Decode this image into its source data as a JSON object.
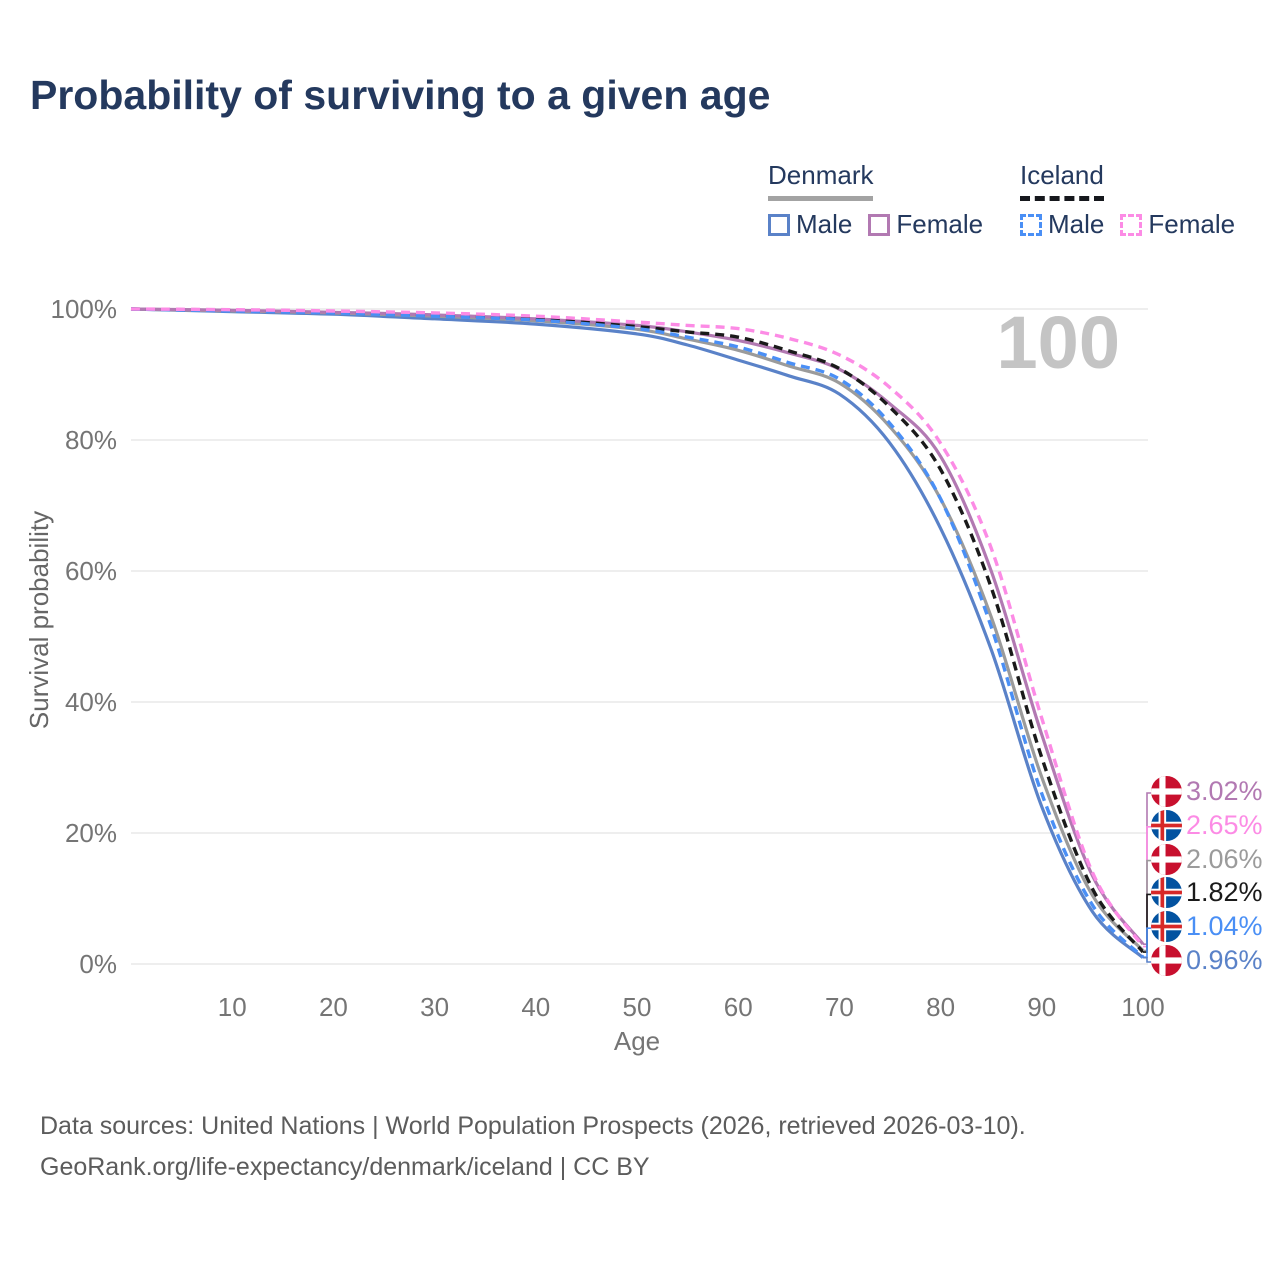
{
  "title": "Probability of surviving to a given age",
  "watermark": "100",
  "legend": {
    "groups": [
      {
        "name": "Denmark",
        "line_style": "solid",
        "underline_color": "#a3a3a3",
        "items": [
          {
            "label": "Male",
            "color": "#5a82c8"
          },
          {
            "label": "Female",
            "color": "#b279b2"
          }
        ]
      },
      {
        "name": "Iceland",
        "line_style": "dashed",
        "underline_color": "#16181d",
        "items": [
          {
            "label": "Male",
            "color": "#4a8ff5"
          },
          {
            "label": "Female",
            "color": "#fc8be5"
          }
        ]
      }
    ]
  },
  "chart_data": {
    "type": "line",
    "title": "Probability of surviving to a given age",
    "xlabel": "Age",
    "ylabel": "Survival probability",
    "xlim": [
      0,
      100
    ],
    "ylim": [
      0,
      100
    ],
    "grid": "horizontal",
    "x_tick_labels": [
      "10",
      "20",
      "30",
      "40",
      "50",
      "60",
      "70",
      "80",
      "90",
      "100"
    ],
    "x_tick_values": [
      10,
      20,
      30,
      40,
      50,
      60,
      70,
      80,
      90,
      100
    ],
    "y_tick_labels": [
      "100%",
      "80%",
      "60%",
      "40%",
      "20%",
      "0%"
    ],
    "y_tick_values": [
      100,
      80,
      60,
      40,
      20,
      0
    ],
    "legend_position": "top-right",
    "x": [
      0,
      10,
      20,
      30,
      40,
      50,
      55,
      60,
      65,
      70,
      75,
      80,
      85,
      90,
      95,
      100
    ],
    "series": [
      {
        "name": "Denmark Female",
        "country": "denmark",
        "sex": "female",
        "color": "#b279b2",
        "dashed": false,
        "end_label": "3.02%",
        "values": [
          100,
          99.8,
          99.5,
          99.1,
          98.5,
          97.5,
          96.5,
          95.2,
          93.3,
          90.8,
          85.5,
          77.5,
          60,
          35,
          13.5,
          3.02
        ]
      },
      {
        "name": "Iceland Female",
        "country": "iceland",
        "sex": "female",
        "color": "#fc8be5",
        "dashed": true,
        "end_label": "2.65%",
        "values": [
          100,
          99.9,
          99.7,
          99.4,
          98.9,
          98.0,
          97.5,
          97.0,
          95.5,
          93.0,
          88,
          79.5,
          63.5,
          37.5,
          14,
          2.65
        ]
      },
      {
        "name": "Denmark Both sexes",
        "country": "denmark",
        "sex": "both",
        "color": "#9b9b9b",
        "dashed": false,
        "end_label": "2.06%",
        "values": [
          100,
          99.7,
          99.4,
          98.9,
          98.2,
          96.9,
          95.4,
          93.7,
          91.3,
          88.7,
          82,
          71,
          53,
          28.5,
          10.5,
          2.06
        ]
      },
      {
        "name": "Iceland Both sexes",
        "country": "iceland",
        "sex": "both",
        "color": "#1a1a1a",
        "dashed": true,
        "end_label": "1.82%",
        "values": [
          100,
          99.8,
          99.5,
          99.1,
          98.5,
          97.3,
          96.5,
          95.7,
          93.6,
          90.9,
          85,
          75.5,
          57.5,
          31.5,
          11.5,
          1.82
        ]
      },
      {
        "name": "Iceland Male",
        "country": "iceland",
        "sex": "male",
        "color": "#4a8ff5",
        "dashed": true,
        "end_label": "1.04%",
        "values": [
          100,
          99.7,
          99.4,
          98.9,
          98.3,
          97.0,
          95.7,
          94.2,
          91.8,
          89.3,
          82.5,
          71,
          51.5,
          26,
          9,
          1.04
        ]
      },
      {
        "name": "Denmark Male",
        "country": "denmark",
        "sex": "male",
        "color": "#5a82c8",
        "dashed": false,
        "end_label": "0.96%",
        "values": [
          100,
          99.6,
          99.2,
          98.5,
          97.7,
          96.2,
          94.5,
          92.2,
          89.8,
          87.0,
          79.5,
          66.5,
          48,
          24,
          8,
          0.96
        ]
      }
    ],
    "flag_colors": {
      "denmark_red": "#c8102e",
      "iceland_blue": "#0352a0",
      "iceland_red": "#d72828",
      "cross_white": "#ffffff"
    }
  },
  "footer": {
    "line1": "Data sources: United Nations | World Population Prospects (2026, retrieved 2026-03-10).",
    "line2": "GeoRank.org/life-expectancy/denmark/iceland | CC BY"
  }
}
